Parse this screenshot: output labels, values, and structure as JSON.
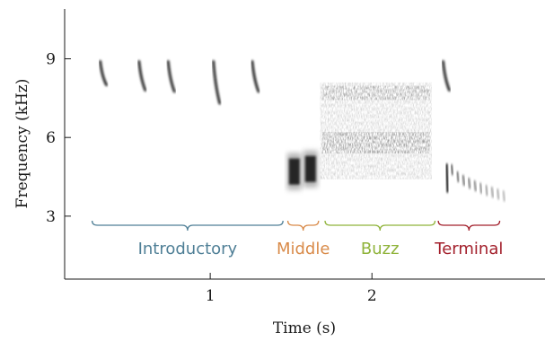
{
  "chart_data": {
    "type": "spectrogram",
    "xlabel": "Time (s)",
    "ylabel": "Frequency (kHz)",
    "xlim": [
      0.1,
      3.07
    ],
    "ylim": [
      0.6,
      10.9
    ],
    "x_ticks": [
      {
        "value": 1,
        "label": "1"
      },
      {
        "value": 2,
        "label": "2"
      }
    ],
    "y_ticks": [
      {
        "value": 3,
        "label": "3"
      },
      {
        "value": 6,
        "label": "6"
      },
      {
        "value": 9,
        "label": "9"
      }
    ],
    "sections": [
      {
        "label": "Introductory",
        "start": 0.27,
        "end": 1.45,
        "color": "#4f7f96"
      },
      {
        "label": "Middle",
        "start": 1.48,
        "end": 1.67,
        "color": "#d98b4a"
      },
      {
        "label": "Buzz",
        "start": 1.71,
        "end": 2.39,
        "color": "#8fb33a"
      },
      {
        "label": "Terminal",
        "start": 2.41,
        "end": 2.79,
        "color": "#a3202c"
      }
    ],
    "notes": [
      {
        "t": 0.32,
        "f_top": 8.9,
        "f_bottom": 8.0
      },
      {
        "t": 0.56,
        "f_top": 8.9,
        "f_bottom": 7.8
      },
      {
        "t": 0.74,
        "f_top": 8.9,
        "f_bottom": 7.75
      },
      {
        "t": 1.02,
        "f_top": 8.9,
        "f_bottom": 7.3
      },
      {
        "t": 1.26,
        "f_top": 8.9,
        "f_bottom": 7.75
      },
      {
        "t": 2.44,
        "f_top": 8.9,
        "f_bottom": 7.8
      }
    ],
    "buzz": {
      "start": 1.68,
      "end": 2.37,
      "f_low": 4.4,
      "f_high": 8.1,
      "band1": 7.7,
      "band2": 5.8
    },
    "middle_notes": [
      {
        "t": 1.52,
        "f_top": 5.4,
        "f_bottom": 4.0
      },
      {
        "t": 1.62,
        "f_top": 5.5,
        "f_bottom": 4.1
      }
    ],
    "terminal_tail": {
      "start": 2.49,
      "end": 2.81,
      "f_top": 4.7,
      "f_bottom": 3.7
    }
  }
}
